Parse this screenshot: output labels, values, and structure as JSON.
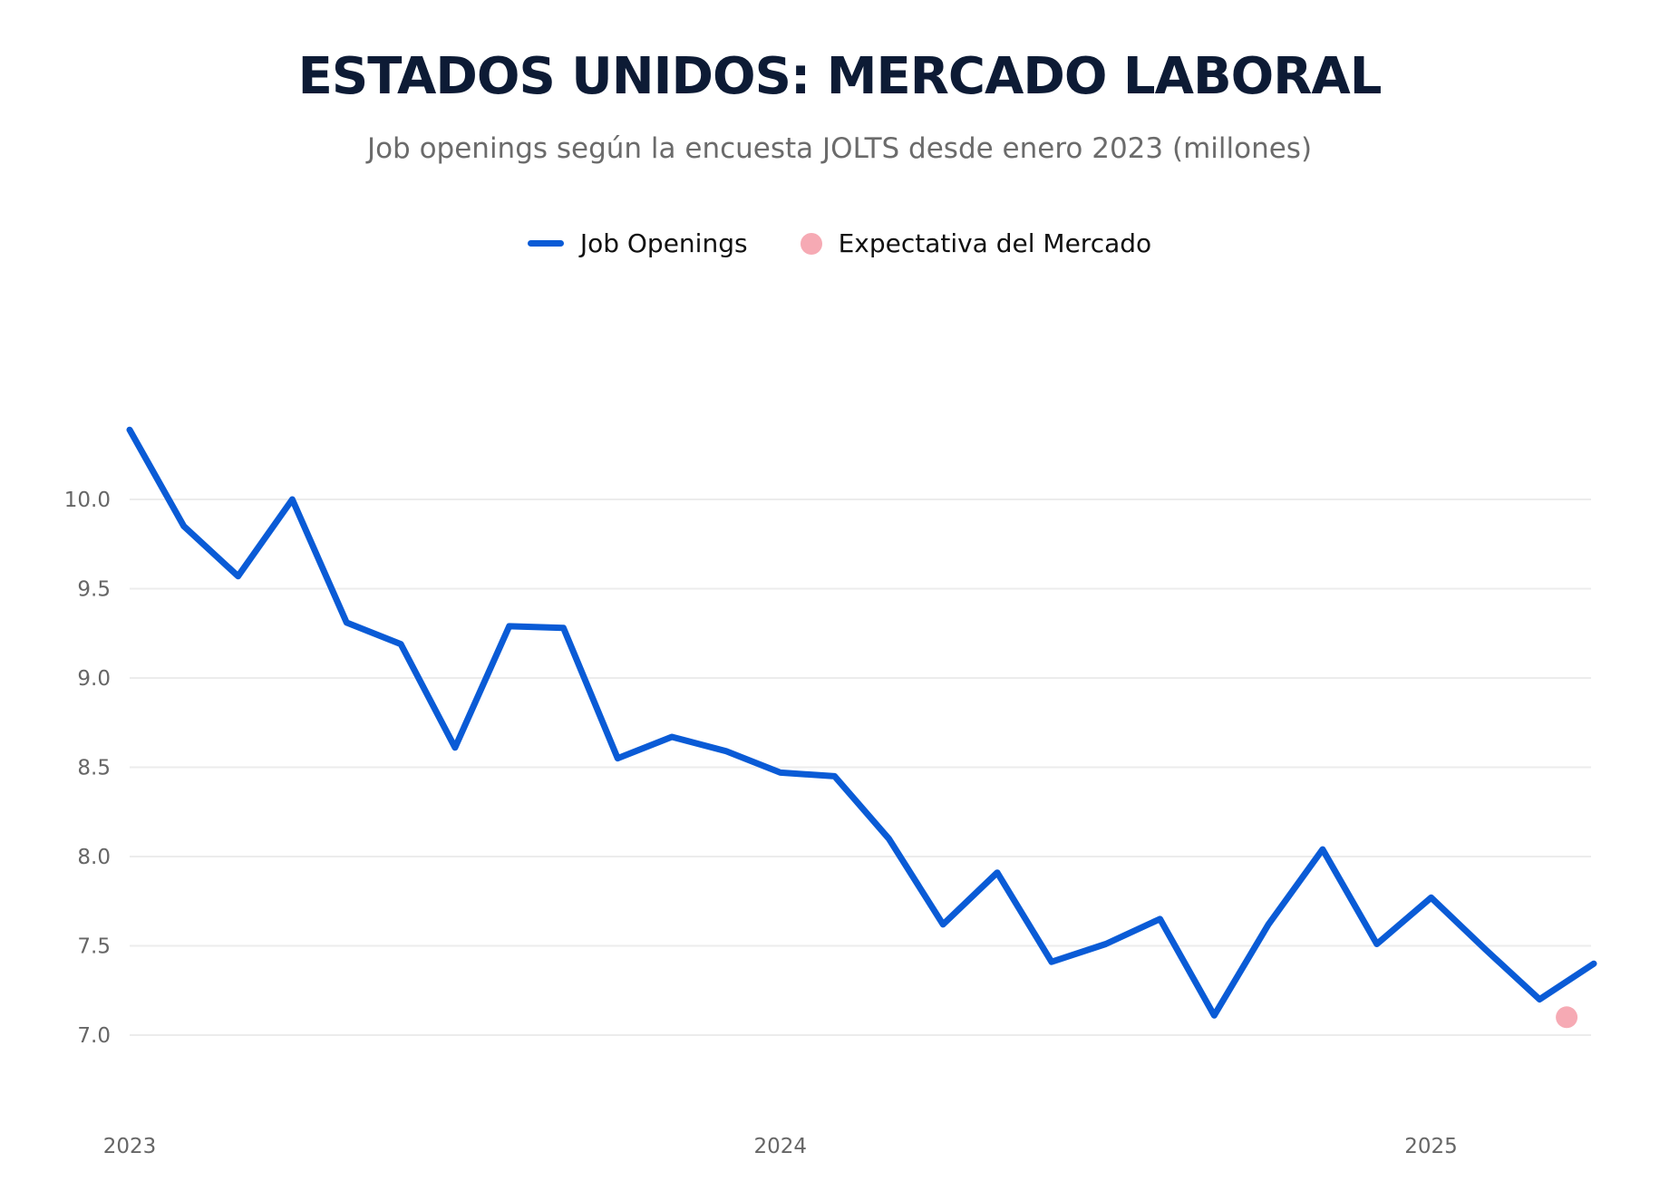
{
  "chart_data": {
    "type": "line",
    "title": "ESTADOS UNIDOS: MERCADO LABORAL",
    "subtitle": "Job openings según la encuesta JOLTS desde enero 2023 (millones)",
    "xlabel": "",
    "ylabel": "",
    "ylim": [
      6.0,
      10.6
    ],
    "yticks": [
      "10.0",
      "9.5",
      "9.0",
      "8.5",
      "8.0",
      "7.5",
      "7.0"
    ],
    "ytick_values": [
      10.0,
      9.5,
      9.0,
      8.5,
      8.0,
      7.5,
      7.0
    ],
    "xticks": [
      "2023",
      "2024",
      "2025"
    ],
    "xtick_indices": [
      0,
      12,
      24
    ],
    "grid": true,
    "legend_position": "top-center",
    "series": [
      {
        "name": "Job Openings",
        "color": "#0a5bd6",
        "x": [
          "2023-01",
          "2023-02",
          "2023-03",
          "2023-04",
          "2023-05",
          "2023-06",
          "2023-07",
          "2023-08",
          "2023-09",
          "2023-10",
          "2023-11",
          "2023-12",
          "2024-01",
          "2024-02",
          "2024-03",
          "2024-04",
          "2024-05",
          "2024-06",
          "2024-07",
          "2024-08",
          "2024-09",
          "2024-10",
          "2024-11",
          "2024-12",
          "2025-01",
          "2025-02",
          "2025-03",
          "2025-04"
        ],
        "values": [
          10.39,
          9.85,
          9.57,
          10.0,
          9.31,
          9.19,
          8.61,
          9.29,
          9.28,
          8.55,
          8.67,
          8.59,
          8.47,
          8.45,
          8.1,
          7.62,
          7.91,
          7.41,
          7.51,
          7.65,
          7.11,
          7.62,
          8.04,
          7.51,
          7.77,
          7.48,
          7.2,
          7.4
        ]
      },
      {
        "name": "Expectativa del Mercado",
        "color": "#f6aab4",
        "x": [
          "2025-03-15"
        ],
        "x_index": 26.5,
        "values": [
          7.1
        ]
      }
    ]
  }
}
